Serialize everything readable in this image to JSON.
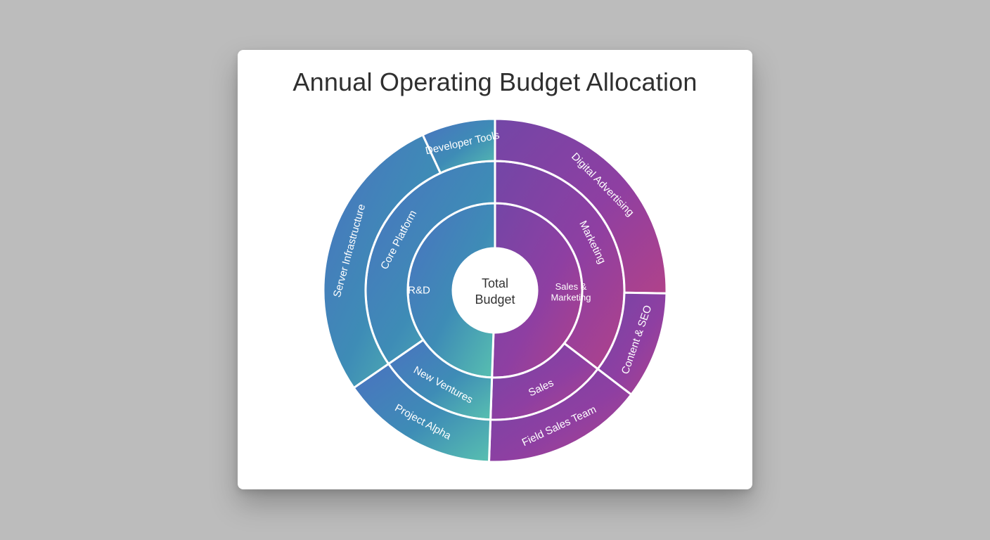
{
  "chart_data": {
    "type": "sunburst",
    "title": "Annual Operating Budget Allocation",
    "center_label": [
      "Total",
      "Budget"
    ],
    "hierarchy": [
      {
        "name": "R&D",
        "value": 50,
        "children": [
          {
            "name": "Core Platform",
            "value": 35,
            "children": [
              {
                "name": "Server Infrastructure",
                "value": 28
              },
              {
                "name": "Developer Tools",
                "value": 7
              }
            ]
          },
          {
            "name": "New Ventures",
            "value": 15,
            "children": [
              {
                "name": "Project Alpha",
                "value": 15
              }
            ]
          }
        ]
      },
      {
        "name": "Sales & Marketing",
        "value": 50,
        "children": [
          {
            "name": "Marketing",
            "value": 35,
            "children": [
              {
                "name": "Digital Advertising",
                "value": 25
              },
              {
                "name": "Content & SEO",
                "value": 10
              }
            ]
          },
          {
            "name": "Sales",
            "value": 15,
            "children": [
              {
                "name": "Field Sales Team",
                "value": 15
              }
            ]
          }
        ]
      }
    ],
    "colors": {
      "rnd_light": "#5ab8b6",
      "rnd_mid": "#3f8fb8",
      "rnd_dark": "#4a78c0",
      "rnd_teal": "#2a9aa8",
      "sm_light": "#a8459e",
      "sm_mid": "#8c3fa6",
      "sm_dark": "#7a46a8",
      "sm_magenta": "#b0408c"
    }
  }
}
